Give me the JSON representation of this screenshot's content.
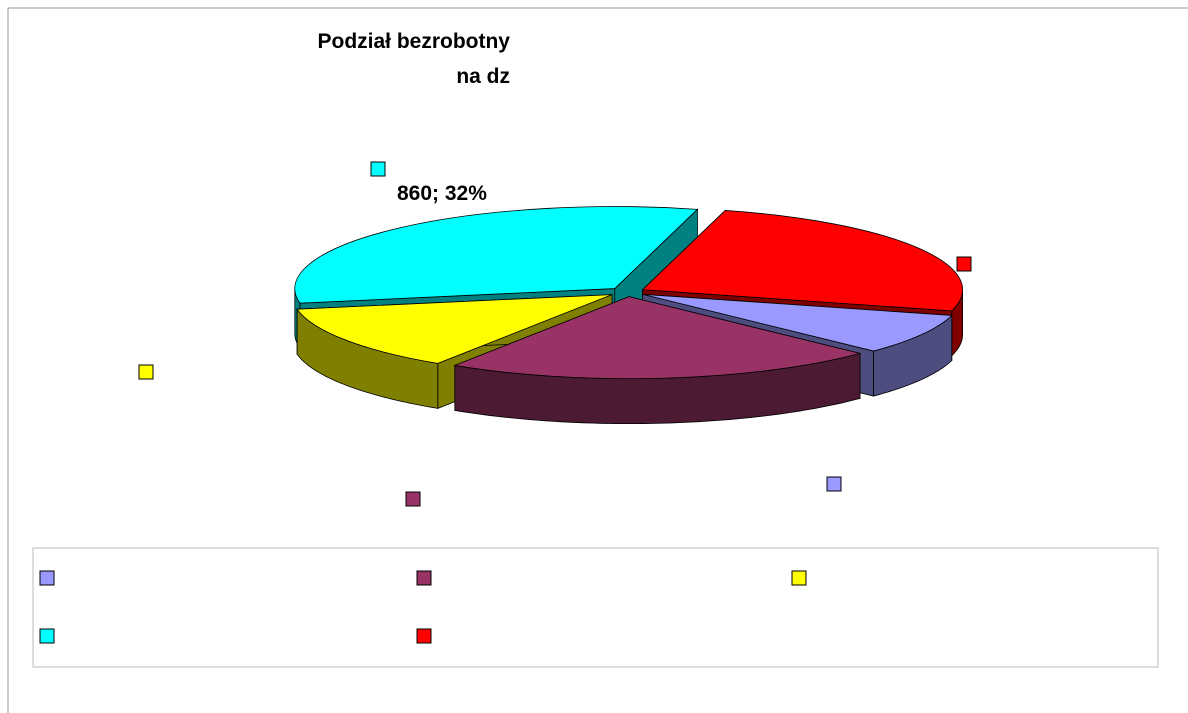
{
  "chart_data": {
    "type": "pie",
    "title": [
      "Podział bezrobotny",
      "na dz"
    ],
    "categories": [
      null,
      null,
      null,
      null,
      null
    ],
    "values": [
      215,
      591,
      349,
      860,
      672
    ],
    "value_labels": [
      null,
      null,
      null,
      "860; 32%",
      null
    ],
    "colors": [
      "#9999ff",
      "#993366",
      "#ffff00",
      "#00ffff",
      "#ff0000"
    ],
    "side_colors": [
      "#4d4d80",
      "#4d1a33",
      "#808000",
      "#008080",
      "#800000"
    ],
    "legend": "bottom"
  }
}
